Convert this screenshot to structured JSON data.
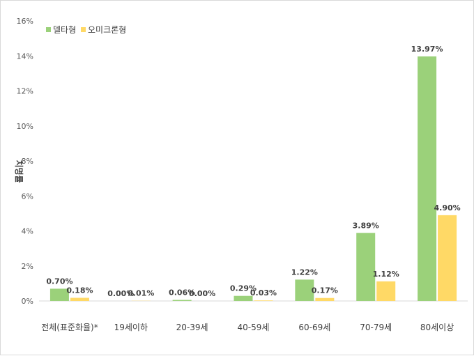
{
  "chart_data": {
    "type": "bar",
    "title": "",
    "xlabel": "",
    "ylabel": "치명률",
    "categories": [
      "전체(표준화율)*",
      "19세이하",
      "20-39세",
      "40-59세",
      "60-69세",
      "70-79세",
      "80세이상"
    ],
    "series": [
      {
        "name": "델타형",
        "color": "#9bd17a",
        "values": [
          0.7,
          0.0,
          0.06,
          0.29,
          1.22,
          3.89,
          13.97
        ],
        "labels": [
          "0.70%",
          "0.00%",
          "0.06%",
          "0.29%",
          "1.22%",
          "3.89%",
          "13.97%"
        ]
      },
      {
        "name": "오미크론형",
        "color": "#ffd966",
        "values": [
          0.18,
          0.01,
          0.0,
          0.03,
          0.17,
          1.12,
          4.9
        ],
        "labels": [
          "0.18%",
          "0.01%",
          "0.00%",
          "0.03%",
          "0.17%",
          "1.12%",
          "4.90%"
        ]
      }
    ],
    "ylim": [
      0,
      16
    ],
    "yticks": [
      "0%",
      "2%",
      "4%",
      "6%",
      "8%",
      "10%",
      "12%",
      "14%",
      "16%"
    ],
    "grid": false,
    "legend_position": "top-left"
  }
}
